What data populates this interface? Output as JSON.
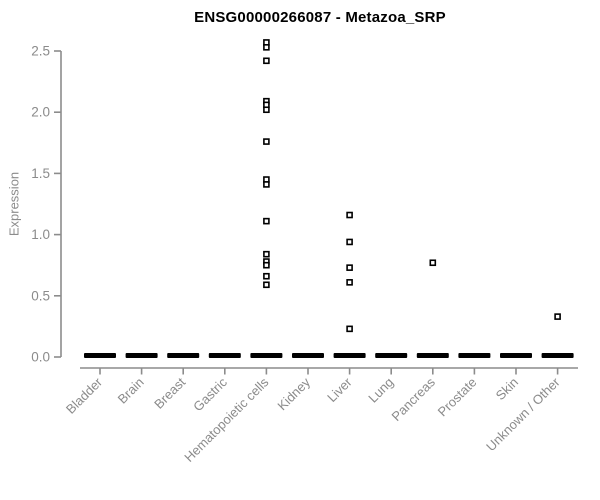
{
  "chart_data": {
    "type": "scatter",
    "title": "ENSG00000266087 - Metazoa_SRP",
    "xlabel": "",
    "ylabel": "Expression",
    "ylim": [
      0.0,
      2.5
    ],
    "yticks": [
      0.0,
      0.5,
      1.0,
      1.5,
      2.0,
      2.5
    ],
    "categories": [
      "Bladder",
      "Brain",
      "Breast",
      "Gastric",
      "Hematopoietic cells",
      "Kidney",
      "Liver",
      "Lung",
      "Pancreas",
      "Prostate",
      "Skin",
      "Unknown / Other"
    ],
    "series": [
      {
        "name": "Hematopoietic cells",
        "values": [
          2.57,
          2.53,
          2.42,
          2.09,
          2.06,
          2.02,
          1.76,
          1.45,
          1.41,
          1.11,
          0.84,
          0.78,
          0.75,
          0.66,
          0.59
        ]
      },
      {
        "name": "Liver",
        "values": [
          1.16,
          0.94,
          0.73,
          0.61,
          0.23
        ]
      },
      {
        "name": "Pancreas",
        "values": [
          0.77
        ]
      },
      {
        "name": "Unknown / Other",
        "values": [
          0.33
        ]
      }
    ],
    "zero_cluster": {
      "all_categories": true,
      "value": 0.0,
      "appearance": "thick black dash of overlapping points at 0"
    },
    "grid": "off",
    "legend": "none",
    "marker": "open-square",
    "colors": {
      "points": "#000000",
      "zero_dash": "#000000",
      "axis": "#8c8c8c",
      "tick_labels": "#8b8b8b",
      "title": "#000000",
      "background": "#ffffff"
    }
  }
}
